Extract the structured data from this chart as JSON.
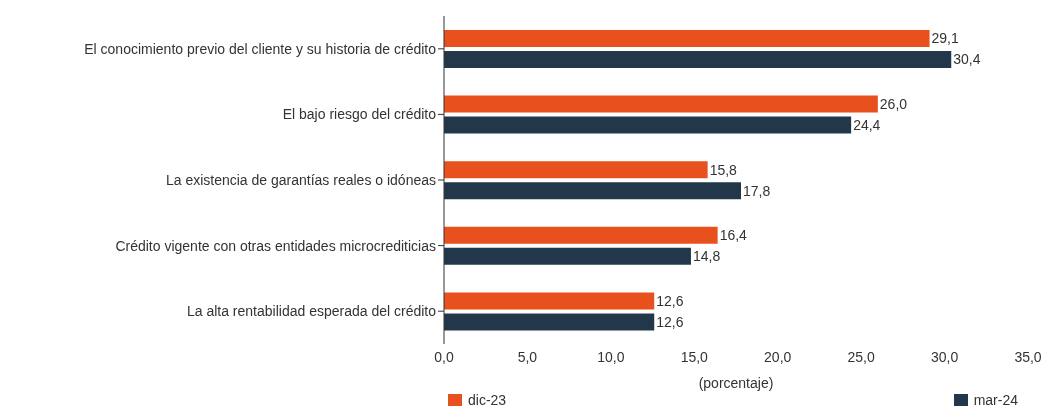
{
  "chart_data": {
    "type": "bar",
    "orientation": "horizontal",
    "xlabel": "(porcentaje)",
    "categories": [
      "El conocimiento previo del cliente y su historia de crédito",
      "El bajo riesgo del crédito",
      "La existencia de garantías reales o idóneas",
      "Crédito vigente con otras entidades microcrediticias",
      "La alta rentabilidad esperada del crédito"
    ],
    "series": [
      {
        "name": "dic-23",
        "color": "#e8501e",
        "values": [
          29.1,
          26.0,
          15.8,
          16.4,
          12.6
        ],
        "value_labels": [
          "29,1",
          "26,0",
          "15,8",
          "16,4",
          "12,6"
        ]
      },
      {
        "name": "mar-24",
        "color": "#22384a",
        "values": [
          30.4,
          24.4,
          17.8,
          14.8,
          12.6
        ],
        "value_labels": [
          "30,4",
          "24,4",
          "17,8",
          "14,8",
          "12,6"
        ]
      }
    ],
    "xlim": [
      0,
      35
    ],
    "xticks": [
      {
        "value": 0,
        "label": "0,0"
      },
      {
        "value": 5,
        "label": "5,0"
      },
      {
        "value": 10,
        "label": "10,0"
      },
      {
        "value": 15,
        "label": "15,0"
      },
      {
        "value": 20,
        "label": "20,0"
      },
      {
        "value": 25,
        "label": "25,0"
      },
      {
        "value": 30,
        "label": "30,0"
      },
      {
        "value": 35,
        "label": "35,0"
      }
    ],
    "grid": false,
    "legend": "bottom"
  }
}
